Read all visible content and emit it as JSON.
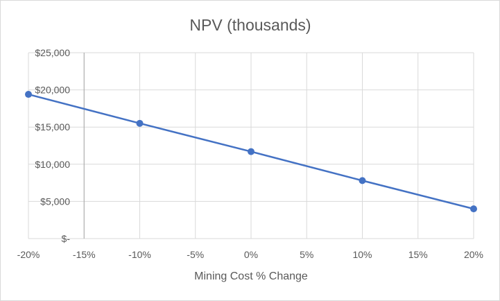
{
  "chart_data": {
    "type": "line",
    "title": "NPV (thousands)",
    "xlabel": "Mining Cost % Change",
    "ylabel": "",
    "x_ticks": [
      "-20%",
      "-15%",
      "-10%",
      "-5%",
      "0%",
      "5%",
      "10%",
      "15%",
      "20%"
    ],
    "x_values": [
      -20,
      -15,
      -10,
      -5,
      0,
      5,
      10,
      15,
      20
    ],
    "xlim": [
      -20,
      20
    ],
    "y_ticks": [
      {
        "value": 0,
        "label": "$-"
      },
      {
        "value": 5000,
        "label": "$5,000"
      },
      {
        "value": 10000,
        "label": "$10,000"
      },
      {
        "value": 15000,
        "label": "$15,000"
      },
      {
        "value": 20000,
        "label": "$20,000"
      },
      {
        "value": 25000,
        "label": "$25,000"
      }
    ],
    "ylim": [
      0,
      25000
    ],
    "grid": true,
    "series": [
      {
        "name": "NPV",
        "color": "#4472c4",
        "points": [
          {
            "x": -20,
            "y": 19400
          },
          {
            "x": -10,
            "y": 15500
          },
          {
            "x": 0,
            "y": 11700
          },
          {
            "x": 10,
            "y": 7800
          },
          {
            "x": 20,
            "y": 4000
          }
        ]
      }
    ]
  }
}
